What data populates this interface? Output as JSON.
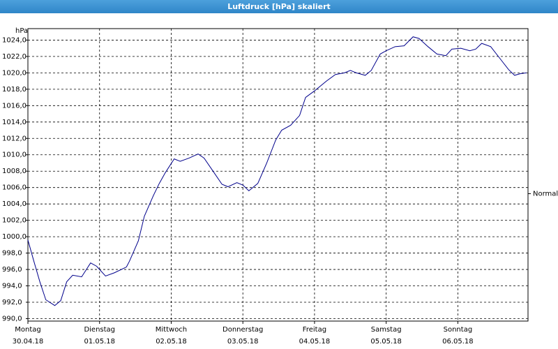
{
  "chart_data": {
    "type": "line",
    "title": "Luftdruck [hPa] skaliert",
    "y_label": "hPa",
    "x": [
      0,
      2,
      4,
      6,
      9,
      11,
      13,
      15,
      18,
      21,
      23,
      26,
      29,
      33,
      34,
      37,
      39,
      42,
      44,
      46,
      49,
      51,
      54,
      57,
      59,
      62,
      65,
      67,
      70,
      72,
      74,
      77,
      80,
      83,
      85,
      88,
      91,
      93,
      96,
      100,
      103,
      106,
      108,
      110,
      113,
      115,
      118,
      120,
      123,
      126,
      129,
      131,
      134,
      137,
      140,
      142,
      145,
      148,
      150,
      152,
      155,
      158,
      161,
      163,
      165,
      167
    ],
    "series": [
      {
        "name": "Normal",
        "color": "#00008b",
        "values": [
          999.6,
          997,
          994.5,
          992.3,
          991.6,
          992.2,
          994.5,
          995.3,
          995.1,
          996.8,
          996.4,
          995.2,
          995.6,
          996.3,
          997,
          999.5,
          1002.5,
          1005,
          1006.5,
          1007.8,
          1009.5,
          1009.2,
          1009.6,
          1010.1,
          1009.6,
          1008,
          1006.4,
          1006.1,
          1006.6,
          1006.3,
          1005.6,
          1006.5,
          1009,
          1011.8,
          1013,
          1013.6,
          1014.8,
          1017,
          1017.8,
          1019,
          1019.8,
          1020,
          1020.3,
          1020,
          1019.7,
          1020.3,
          1022.3,
          1022.7,
          1023.2,
          1023.3,
          1024.4,
          1024.2,
          1023.2,
          1022.3,
          1022.1,
          1022.9,
          1023,
          1022.7,
          1022.9,
          1023.6,
          1023.2,
          1021.8,
          1020.4,
          1019.7,
          1019.9,
          1020
        ]
      }
    ],
    "xlim": [
      0,
      167.5
    ],
    "xticks": [
      {
        "value": 0,
        "label": "Montag"
      },
      {
        "value": 24,
        "label": "Dienstag"
      },
      {
        "value": 48,
        "label": "Mittwoch"
      },
      {
        "value": 72,
        "label": "Donnerstag"
      },
      {
        "value": 96,
        "label": "Freitag"
      },
      {
        "value": 120,
        "label": "Samstag"
      },
      {
        "value": 144,
        "label": "Sonntag"
      }
    ],
    "xtick_dates": [
      "30.04.18",
      "01.05.18",
      "02.05.18",
      "03.05.18",
      "04.05.18",
      "05.05.18",
      "06.05.18"
    ],
    "ylim": [
      989.7,
      1025.4
    ],
    "yticks": [
      {
        "value": 990,
        "label": "990,0"
      },
      {
        "value": 992,
        "label": "992,0"
      },
      {
        "value": 994,
        "label": "994,0"
      },
      {
        "value": 996,
        "label": "996,0"
      },
      {
        "value": 998,
        "label": "998,0"
      },
      {
        "value": 1000,
        "label": "1000,0"
      },
      {
        "value": 1002,
        "label": "1002,0"
      },
      {
        "value": 1004,
        "label": "1004,0"
      },
      {
        "value": 1006,
        "label": "1006,0"
      },
      {
        "value": 1008,
        "label": "1008,0"
      },
      {
        "value": 1010,
        "label": "1010,0"
      },
      {
        "value": 1012,
        "label": "1012,0"
      },
      {
        "value": 1014,
        "label": "1014,0"
      },
      {
        "value": 1016,
        "label": "1016,0"
      },
      {
        "value": 1018,
        "label": "1018,0"
      },
      {
        "value": 1020,
        "label": "1020,0"
      },
      {
        "value": 1022,
        "label": "1022,0"
      },
      {
        "value": 1024,
        "label": "1024,0"
      }
    ],
    "grid": true
  }
}
